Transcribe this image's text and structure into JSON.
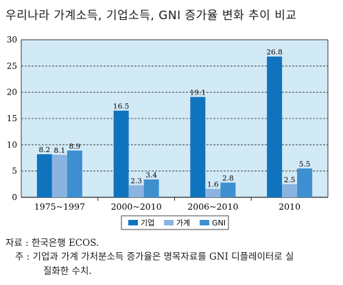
{
  "title": "우리나라 가계소득, 기업소득, GNI 증가율 변화 추이 비교",
  "colors": {
    "plot_bg": "#d2e9f6",
    "grid": "#2a2a2a",
    "series": [
      "#0f73be",
      "#8ab4df",
      "#3d8fcf"
    ]
  },
  "chart_data": {
    "type": "bar",
    "categories": [
      "1975~1997",
      "2000~2010",
      "2006~2010",
      "2010"
    ],
    "series": [
      {
        "name": "기업",
        "values": [
          8.2,
          16.5,
          19.1,
          26.8
        ],
        "labels": [
          "8.2",
          "16.5",
          "19.1",
          "26.8"
        ]
      },
      {
        "name": "가계",
        "values": [
          8.1,
          2.3,
          1.6,
          2.5
        ],
        "labels": [
          "8.1",
          "2.3",
          "1.6",
          "2.5"
        ]
      },
      {
        "name": "GNI",
        "values": [
          8.9,
          3.4,
          2.8,
          5.5
        ],
        "labels": [
          "8.9",
          "3.4",
          "2.8",
          "5.5"
        ]
      }
    ],
    "ylim": [
      0,
      30
    ],
    "yticks": [
      0,
      5,
      10,
      15,
      20,
      25,
      30
    ],
    "grid": true,
    "legend_position": "bottom-center"
  },
  "notes": {
    "source": "자료 : 한국은행 ECOS.",
    "note_line1": "주 : 기업과 가계 가처분소득 증가율은 명목자료를 GNI 디플레이터로 실",
    "note_line2": "질화한 수치."
  }
}
